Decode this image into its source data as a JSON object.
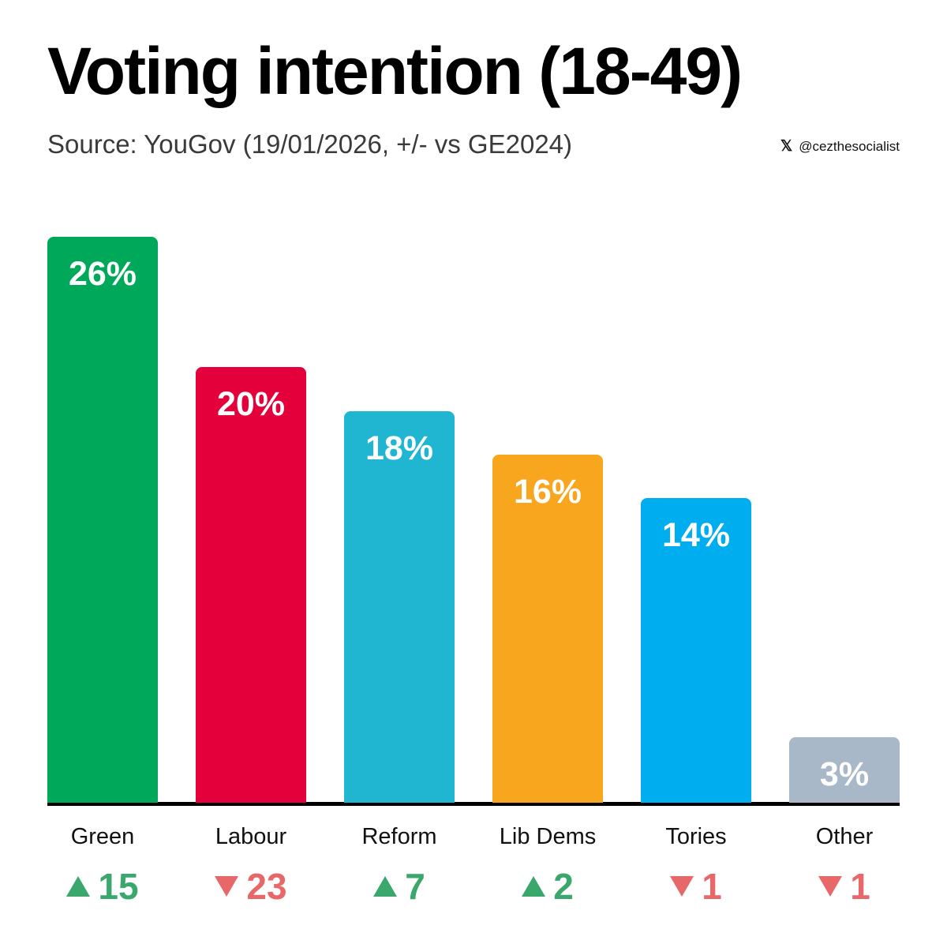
{
  "header": {
    "title": "Voting intention (18-49)",
    "subtitle": "Source: YouGov (19/01/2026, +/- vs GE2024)",
    "handle_icon": "x-logo-icon",
    "handle_logo": "𝕏",
    "handle": "@cezthesocialist"
  },
  "colors": {
    "up": "#3aa76d",
    "down": "#e8686a",
    "baseline": "#000000"
  },
  "bars": [
    {
      "label": "Green",
      "value_label": "26%",
      "color": "#00a85a",
      "change": "15",
      "direction": "up"
    },
    {
      "label": "Labour",
      "value_label": "20%",
      "color": "#e4003b",
      "change": "23",
      "direction": "down"
    },
    {
      "label": "Reform",
      "value_label": "18%",
      "color": "#20b6d2",
      "change": "7",
      "direction": "up"
    },
    {
      "label": "Lib Dems",
      "value_label": "16%",
      "color": "#f8a61e",
      "change": "2",
      "direction": "up"
    },
    {
      "label": "Tories",
      "value_label": "14%",
      "color": "#00aeef",
      "change": "1",
      "direction": "down"
    },
    {
      "label": "Other",
      "value_label": "3%",
      "color": "#a9b8c9",
      "change": "1",
      "direction": "down"
    }
  ],
  "chart_data": {
    "type": "bar",
    "title": "Voting intention (18-49)",
    "subtitle": "Source: YouGov (19/01/2026, +/- vs GE2024)",
    "categories": [
      "Green",
      "Labour",
      "Reform",
      "Lib Dems",
      "Tories",
      "Other"
    ],
    "values": [
      26,
      20,
      18,
      16,
      14,
      3
    ],
    "change_vs_ge2024": [
      15,
      -23,
      7,
      2,
      -1,
      -1
    ],
    "unit": "%",
    "xlabel": "",
    "ylabel": "",
    "ylim": [
      0,
      26
    ],
    "grid": false,
    "legend": "none",
    "colors": [
      "#00a85a",
      "#e4003b",
      "#20b6d2",
      "#f8a61e",
      "#00aeef",
      "#a9b8c9"
    ]
  }
}
